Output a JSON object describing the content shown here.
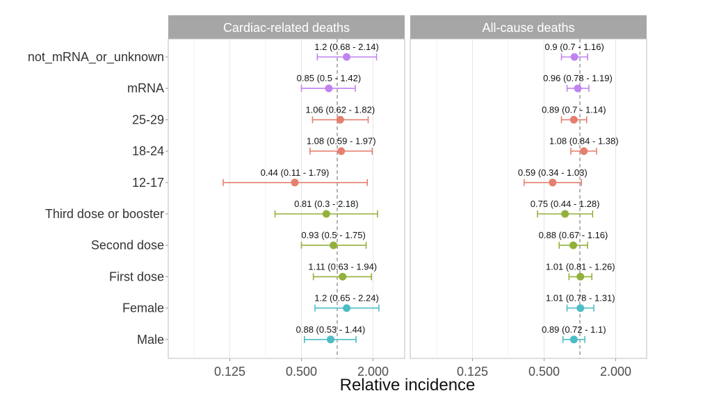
{
  "chart_data": {
    "type": "forest",
    "xlabel": "Relative incidence",
    "x_scale": "log2",
    "xlim": [
      0.04,
      3.7
    ],
    "x_ticks": [
      "0.125",
      "0.500",
      "2.000"
    ],
    "x_tick_values": [
      0.125,
      0.5,
      2.0
    ],
    "reference_line": 1,
    "grid": true,
    "categories": [
      "not_mRNA_or_unknown",
      "mRNA",
      "25-29",
      "18-24",
      "12-17",
      "Third dose or booster",
      "Second dose",
      "First dose",
      "Female",
      "Male"
    ],
    "groups": [
      "vaccine",
      "vaccine",
      "age",
      "age",
      "age",
      "dose",
      "dose",
      "dose",
      "sex",
      "sex"
    ],
    "group_colors": {
      "vaccine": "#c183f0",
      "age": "#e57f6e",
      "dose": "#93b13a",
      "sex": "#4dbdc5"
    },
    "panels": [
      {
        "title": "Cardiac-related deaths",
        "estimates": [
          1.2,
          0.85,
          1.06,
          1.08,
          0.44,
          0.81,
          0.93,
          1.11,
          1.2,
          0.88
        ],
        "lower": [
          0.68,
          0.5,
          0.62,
          0.59,
          0.11,
          0.3,
          0.5,
          0.63,
          0.65,
          0.53
        ],
        "upper": [
          2.14,
          1.42,
          1.82,
          1.97,
          1.79,
          2.18,
          1.75,
          1.94,
          2.24,
          1.44
        ],
        "labels": [
          "1.2 (0.68 - 2.14)",
          "0.85 (0.5 - 1.42)",
          "1.06 (0.62 - 1.82)",
          "1.08 (0.59 - 1.97)",
          "0.44 (0.11 - 1.79)",
          "0.81 (0.3 - 2.18)",
          "0.93 (0.5 - 1.75)",
          "1.11 (0.63 - 1.94)",
          "1.2 (0.65 - 2.24)",
          "0.88 (0.53 - 1.44)"
        ]
      },
      {
        "title": "All-cause deaths",
        "estimates": [
          0.9,
          0.96,
          0.89,
          1.08,
          0.59,
          0.75,
          0.88,
          1.01,
          1.01,
          0.89
        ],
        "lower": [
          0.7,
          0.78,
          0.7,
          0.84,
          0.34,
          0.44,
          0.67,
          0.81,
          0.78,
          0.72
        ],
        "upper": [
          1.16,
          1.19,
          1.14,
          1.38,
          1.03,
          1.28,
          1.16,
          1.26,
          1.31,
          1.1
        ],
        "labels": [
          "0.9 (0.7 - 1.16)",
          "0.96 (0.78 - 1.19)",
          "0.89 (0.7 - 1.14)",
          "1.08 (0.84 - 1.38)",
          "0.59 (0.34 - 1.03)",
          "0.75 (0.44 - 1.28)",
          "0.88 (0.67 - 1.16)",
          "1.01 (0.81 - 1.26)",
          "1.01 (0.78 - 1.31)",
          "0.89 (0.72 - 1.1)"
        ]
      }
    ]
  }
}
